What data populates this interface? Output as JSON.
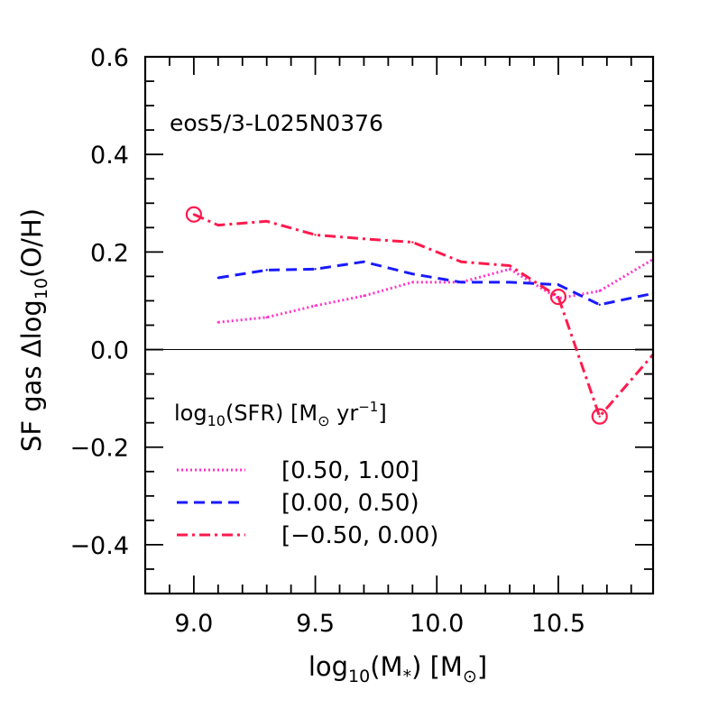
{
  "chart_data": {
    "type": "line",
    "annotation": "eos5/3-L025N0376",
    "xlabel": "log",
    "xlabel_sub": "10",
    "xlabel_rest": "(M",
    "xlabel_star": "*",
    "xlabel_tail": ")  [M",
    "xlabel_sun": "⊙",
    "xlabel_end": "]",
    "ylabel": "SF gas  Δlog",
    "ylabel_sub": "10",
    "ylabel_rest": "(O/H)",
    "xlim": [
      8.8,
      10.89
    ],
    "ylim": [
      -0.5,
      0.6
    ],
    "x_ticks": [
      9.0,
      9.5,
      10.0,
      10.5
    ],
    "x_tick_labels": [
      "9.0",
      "9.5",
      "10.0",
      "10.5"
    ],
    "y_ticks": [
      -0.4,
      -0.2,
      0.0,
      0.2,
      0.4,
      0.6
    ],
    "y_tick_labels": [
      "−0.4",
      "−0.2",
      "0.0",
      "0.2",
      "0.4",
      "0.6"
    ],
    "zero_line": 0.0,
    "legend": {
      "title_a": "log",
      "title_sub": "10",
      "title_b": "(SFR)  [M",
      "title_sun": "⊙",
      "title_c": " yr",
      "title_sup": "−1",
      "title_d": "]",
      "placement": "lower-left"
    },
    "series": [
      {
        "name": "[0.50, 1.00]",
        "color": "#ff33cc",
        "dash": "dotted",
        "x": [
          9.1,
          9.3,
          9.5,
          9.7,
          9.9,
          10.1,
          10.3,
          10.5,
          10.67,
          10.89
        ],
        "y": [
          0.056,
          0.066,
          0.09,
          0.11,
          0.138,
          0.138,
          0.165,
          0.105,
          0.12,
          0.185
        ]
      },
      {
        "name": "[0.00, 0.50)",
        "color": "#1a1aff",
        "dash": "dashed",
        "x": [
          9.1,
          9.3,
          9.5,
          9.7,
          9.9,
          10.1,
          10.3,
          10.5,
          10.67,
          10.89
        ],
        "y": [
          0.147,
          0.163,
          0.165,
          0.18,
          0.155,
          0.138,
          0.138,
          0.133,
          0.092,
          0.115
        ]
      },
      {
        "name": "[−0.50, 0.00)",
        "color": "#ff1a4d",
        "dash": "dashdot",
        "x": [
          9.0,
          9.1,
          9.3,
          9.5,
          9.7,
          9.9,
          10.1,
          10.3,
          10.5,
          10.67,
          10.89
        ],
        "y": [
          0.277,
          0.255,
          0.263,
          0.235,
          0.227,
          0.22,
          0.18,
          0.172,
          0.108,
          -0.137,
          -0.01
        ],
        "circled_x": [
          9.0,
          10.5,
          10.67
        ]
      }
    ]
  }
}
